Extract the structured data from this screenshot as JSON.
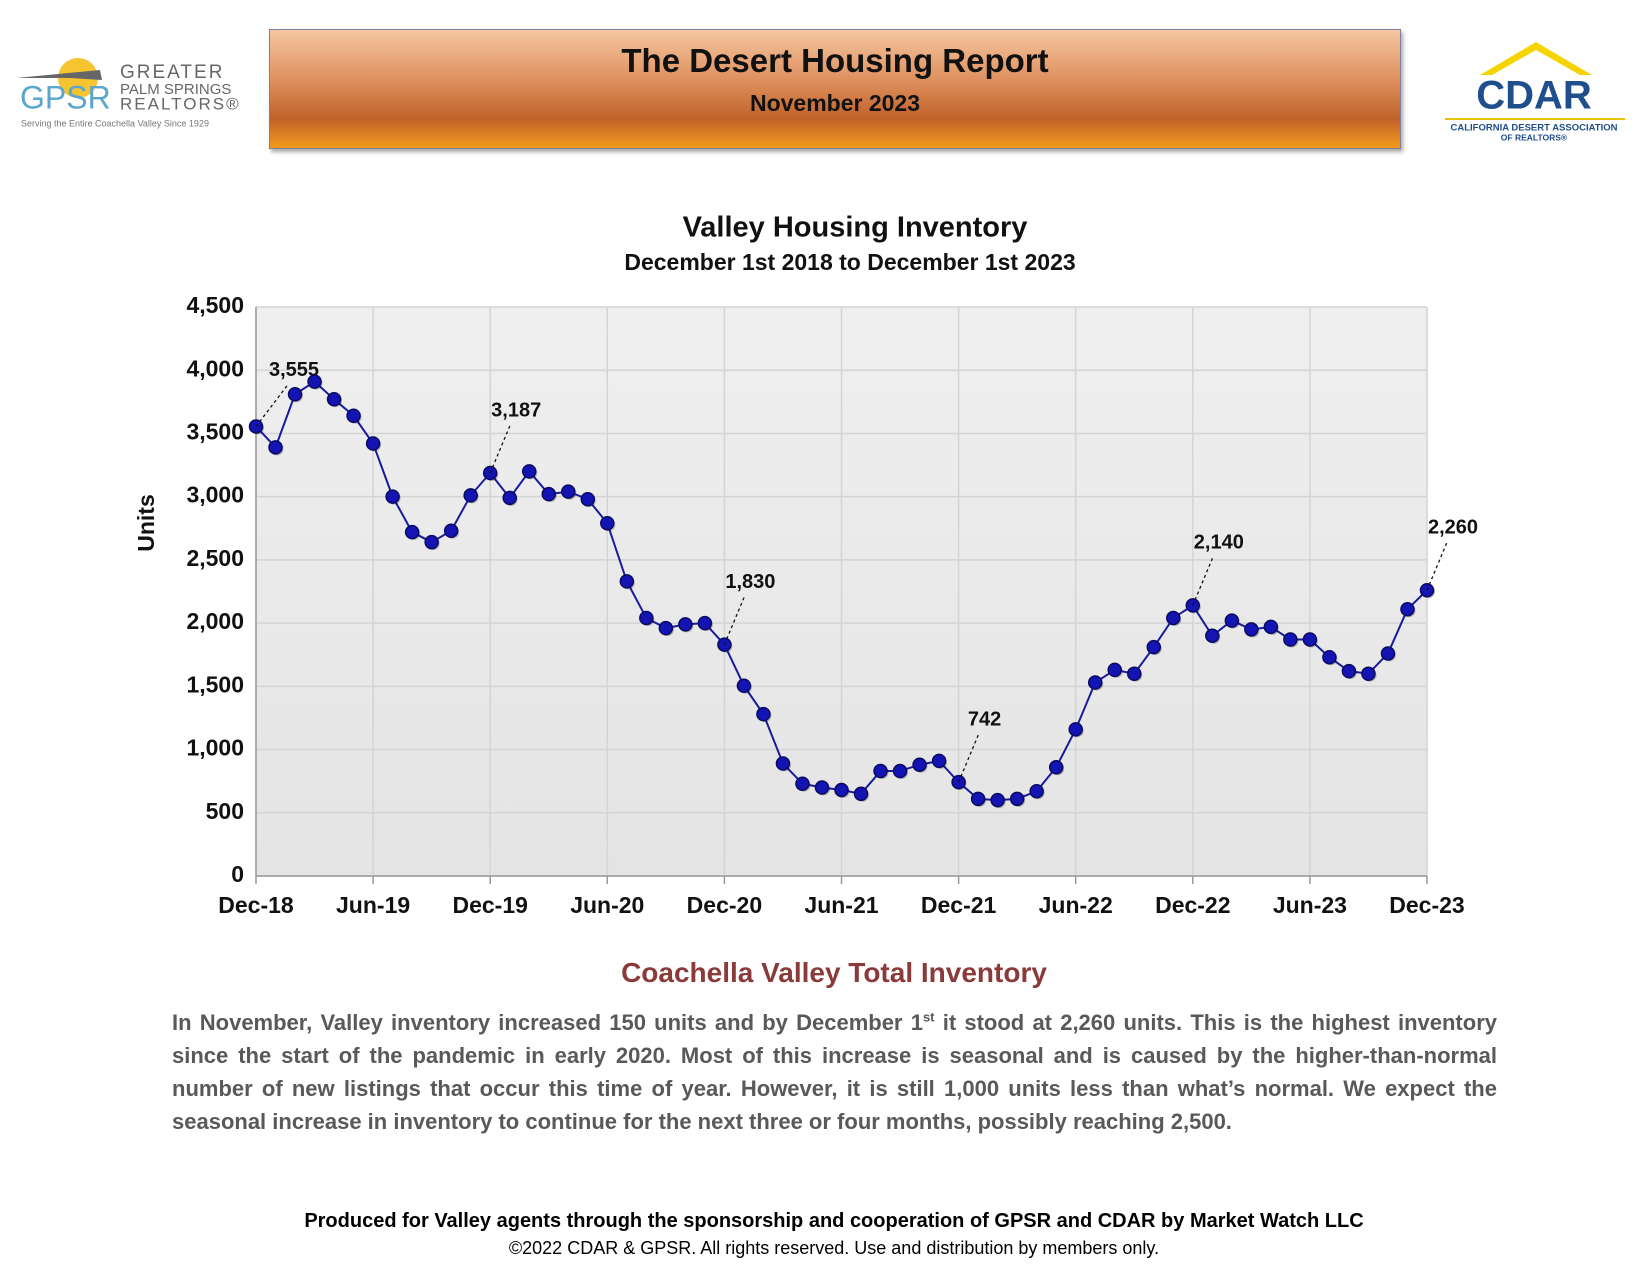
{
  "header": {
    "title": "The Desert Housing Report",
    "subtitle": "November 2023"
  },
  "logos": {
    "gpsr": {
      "mark": "GPSR",
      "line1": "GREATER",
      "line2": "PALM SPRINGS",
      "line3": "REALTORS®",
      "tagline": "Serving the Entire Coachella Valley Since 1929"
    },
    "cdar": {
      "mark": "CDAR",
      "line1": "CALIFORNIA DESERT ASSOCIATION",
      "line2": "OF REALTORS®"
    }
  },
  "chart_data": {
    "type": "line",
    "title": "Valley Housing Inventory",
    "subtitle": "December 1st 2018 to December 1st 2023",
    "y_label": "Units",
    "categories": [
      "Dec-18",
      null,
      null,
      null,
      null,
      null,
      "Jun-19",
      null,
      null,
      null,
      null,
      null,
      "Dec-19",
      null,
      null,
      null,
      null,
      null,
      "Jun-20",
      null,
      null,
      null,
      null,
      null,
      "Dec-20",
      null,
      null,
      null,
      null,
      null,
      "Jun-21",
      null,
      null,
      null,
      null,
      null,
      "Dec-21",
      null,
      null,
      null,
      null,
      null,
      "Jun-22",
      null,
      null,
      null,
      null,
      null,
      "Dec-22",
      null,
      null,
      null,
      null,
      null,
      "Jun-23",
      null,
      null,
      null,
      null,
      null,
      "Dec-23"
    ],
    "series": [
      {
        "name": "Total Inventory",
        "color": "#1a1a9c",
        "values": [
          3555,
          3390,
          3810,
          3910,
          3770,
          3640,
          3420,
          3000,
          2720,
          2640,
          2730,
          3010,
          3187,
          2990,
          3200,
          3020,
          3040,
          2980,
          2790,
          2330,
          2040,
          1960,
          1990,
          2000,
          1830,
          1505,
          1280,
          890,
          730,
          700,
          680,
          650,
          830,
          830,
          880,
          910,
          742,
          610,
          600,
          610,
          670,
          860,
          1160,
          1530,
          1630,
          1600,
          1810,
          2040,
          2140,
          1900,
          2020,
          1950,
          1970,
          1870,
          1870,
          1730,
          1620,
          1600,
          1760,
          2110,
          2260
        ],
        "value_labels": [
          "3,555",
          null,
          null,
          null,
          null,
          null,
          null,
          null,
          null,
          null,
          null,
          null,
          "3,187",
          null,
          null,
          null,
          null,
          null,
          null,
          null,
          null,
          null,
          null,
          null,
          "1,830",
          null,
          null,
          null,
          null,
          null,
          null,
          null,
          null,
          null,
          null,
          null,
          "742",
          null,
          null,
          null,
          null,
          null,
          null,
          null,
          null,
          null,
          null,
          null,
          "2,140",
          null,
          null,
          null,
          null,
          null,
          null,
          null,
          null,
          null,
          null,
          null,
          "2,260"
        ]
      }
    ],
    "ylim": [
      0,
      4500
    ],
    "yticks": [
      0,
      500,
      {
        "value": 1000,
        "label": "1,000"
      },
      {
        "value": 1500,
        "label": "1,500"
      },
      {
        "value": 2000,
        "label": "2,000"
      },
      {
        "value": 2500,
        "label": "2,500"
      },
      {
        "value": 3000,
        "label": "3,000"
      },
      {
        "value": 3500,
        "label": "3,500"
      },
      {
        "value": 4000,
        "label": "4,000"
      },
      {
        "value": 4500,
        "label": "4,500"
      }
    ],
    "grid": true
  },
  "section": {
    "heading": "Coachella Valley Total Inventory",
    "paragraph": [
      "In November, Valley inventory increased 150 units and by December 1",
      "st",
      " it stood at 2,260 units. This is the highest inventory since the start of the pandemic in early 2020. Most of this increase is seasonal and is caused by the higher-than-normal number of new listings that occur this time of year. However, it is still 1,000 units less than what’s normal. We expect the seasonal increase in inventory to continue for the next three or four months, possibly reaching 2,500."
    ]
  },
  "footer": {
    "line1": "Produced for Valley agents through the sponsorship and cooperation of GPSR and CDAR by Market Watch LLC",
    "line2": "©2022 CDAR & GPSR.  All rights reserved.  Use and distribution by members only."
  }
}
